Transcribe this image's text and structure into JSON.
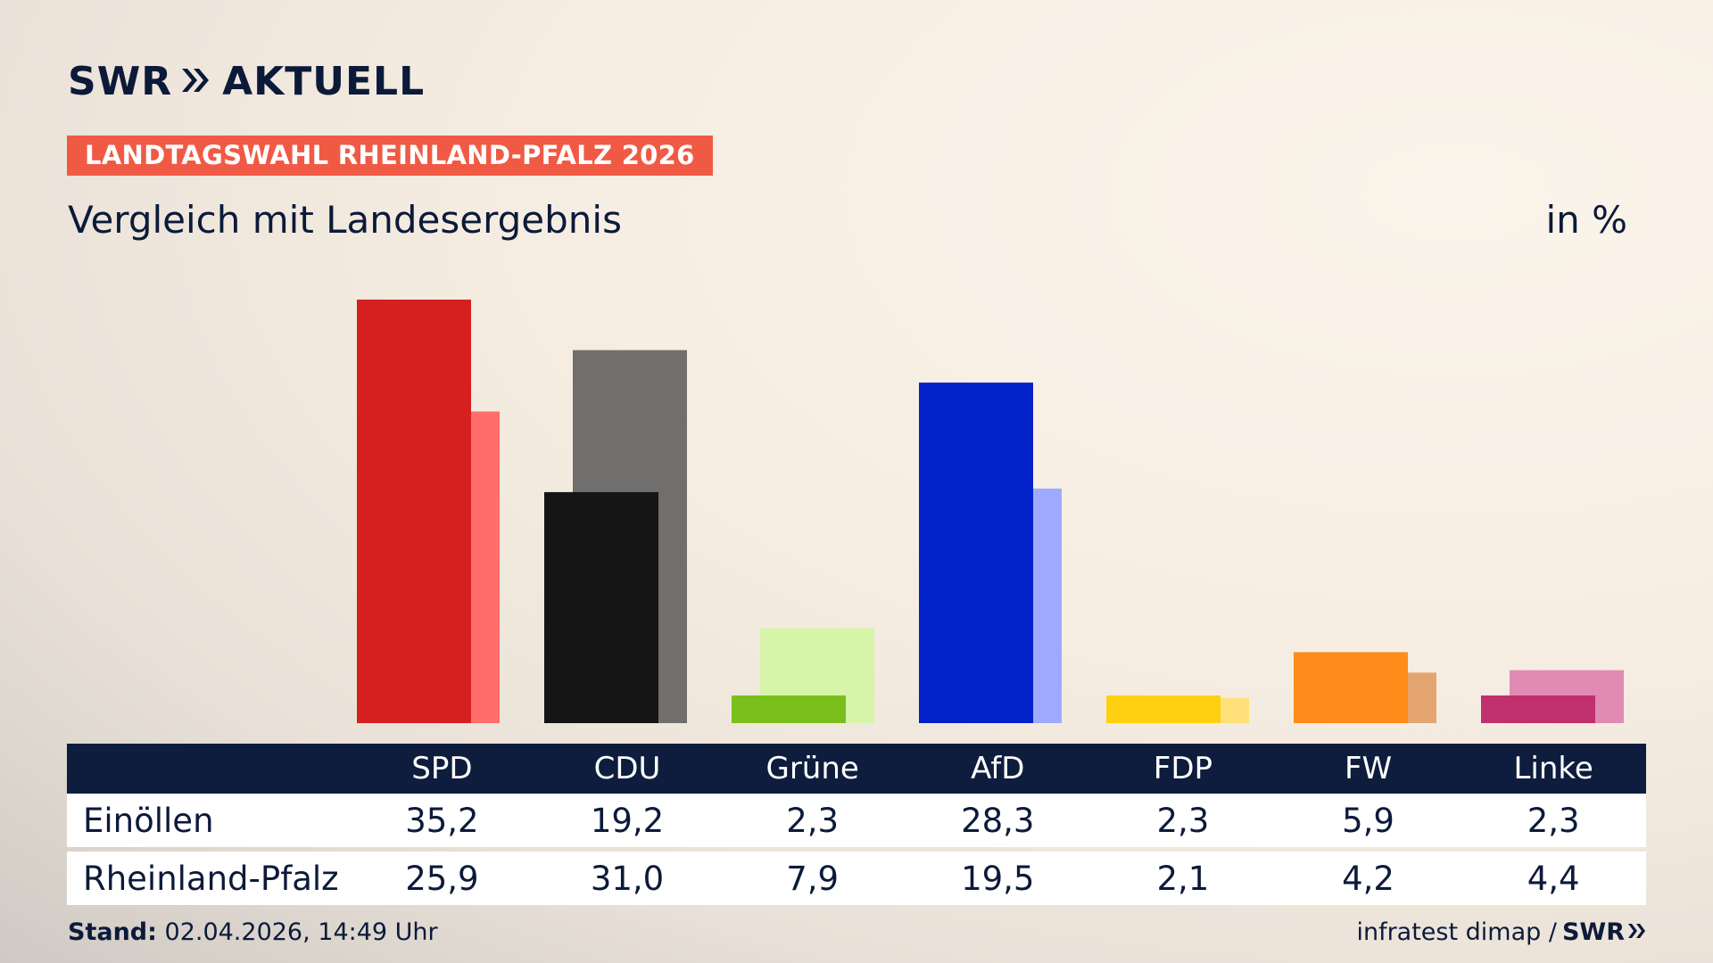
{
  "brand": {
    "logo_left": "SWR",
    "logo_right": "AKTUELL",
    "accent": "#f05a45"
  },
  "header": {
    "kicker": "LANDTAGSWAHL RHEINLAND-PFALZ 2026",
    "subtitle": "Vergleich mit Landesergebnis",
    "unit": "in %"
  },
  "table": {
    "rows": [
      {
        "label": "Einöllen",
        "values": [
          "35,2",
          "19,2",
          "2,3",
          "28,3",
          "2,3",
          "5,9",
          "2,3"
        ]
      },
      {
        "label": "Rheinland-Pfalz",
        "values": [
          "25,9",
          "31,0",
          "7,9",
          "19,5",
          "2,1",
          "4,2",
          "4,4"
        ]
      }
    ]
  },
  "footer": {
    "stand_label": "Stand:",
    "stand_value": "02.04.2026, 14:49 Uhr",
    "source": "infratest dimap /",
    "source_brand": "SWR"
  },
  "chart_data": {
    "type": "bar",
    "categories": [
      "SPD",
      "CDU",
      "Grüne",
      "AfD",
      "FDP",
      "FW",
      "Linke"
    ],
    "series": [
      {
        "name": "Einöllen",
        "values": [
          35.2,
          19.2,
          2.3,
          28.3,
          2.3,
          5.9,
          2.3
        ],
        "colors": [
          "#d62020",
          "#151515",
          "#7abf1c",
          "#0022c8",
          "#ffd012",
          "#ff8c1a",
          "#c0306f"
        ]
      },
      {
        "name": "Rheinland-Pfalz",
        "values": [
          25.9,
          31.0,
          7.9,
          19.5,
          2.1,
          4.2,
          4.4
        ],
        "colors": [
          "#ff6e6a",
          "#706f6d",
          "#d6f5a8",
          "#9eaaff",
          "#ffe07a",
          "#e4a570",
          "#e08ab4"
        ]
      }
    ],
    "ylim": [
      0,
      35.2
    ],
    "legend": "table below chart"
  }
}
